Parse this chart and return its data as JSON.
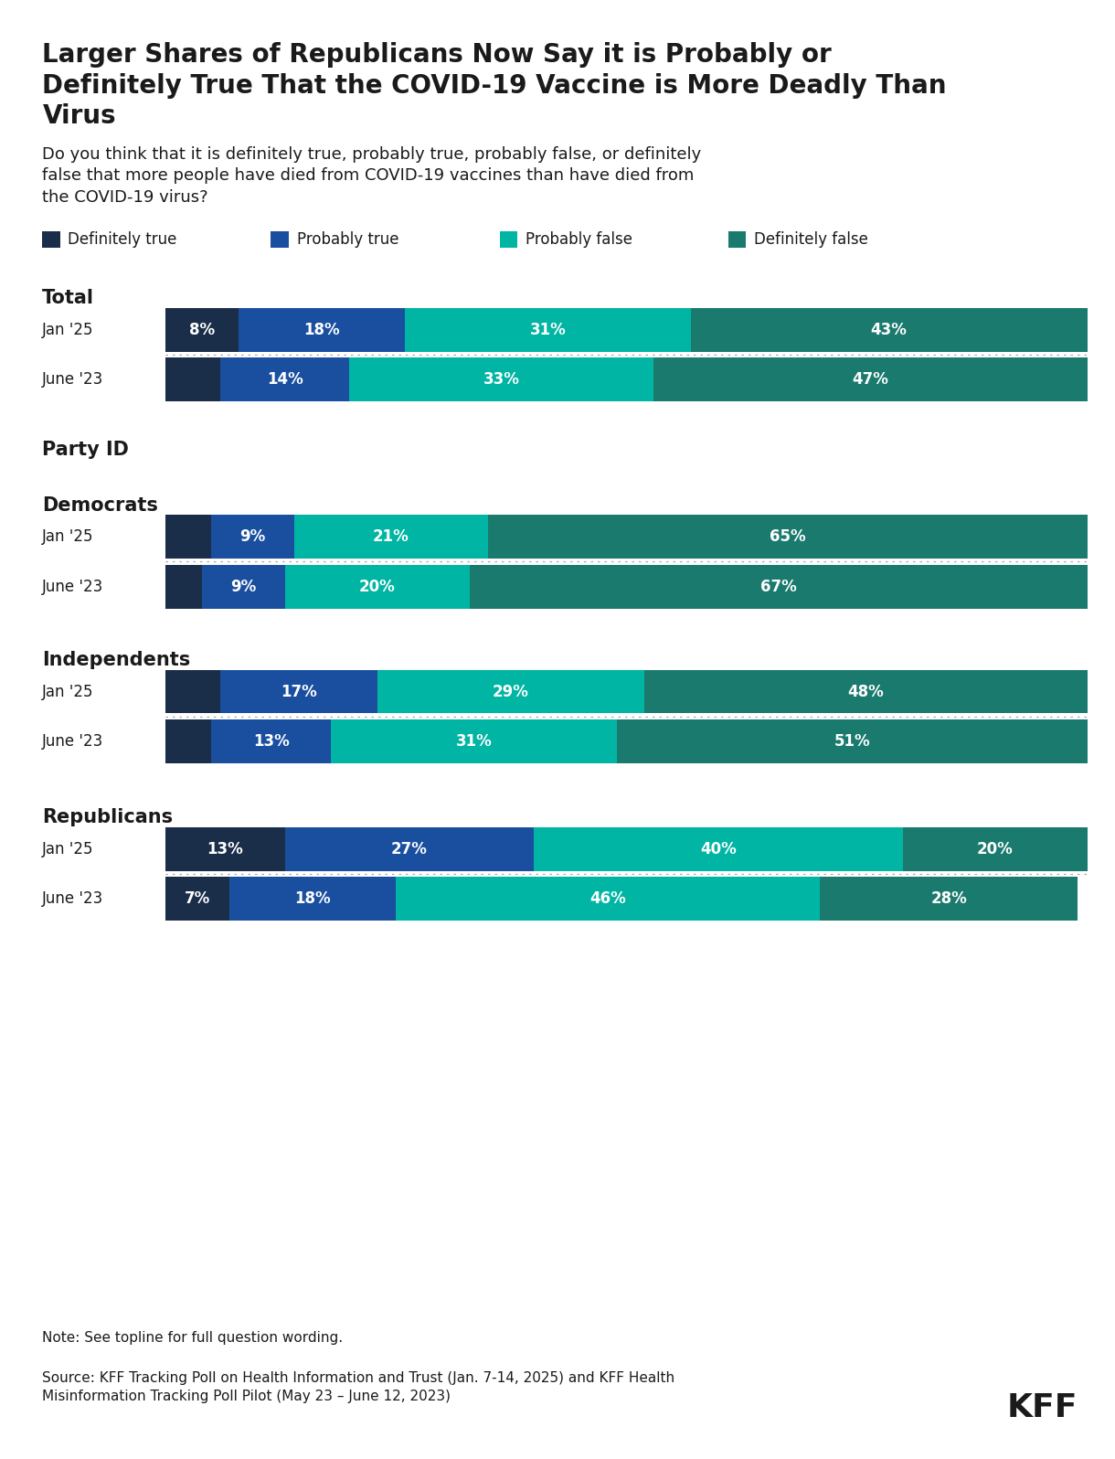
{
  "title": "Larger Shares of Republicans Now Say it is Probably or\nDefinitely True That the COVID-19 Vaccine is More Deadly Than\nVirus",
  "subtitle": "Do you think that it is definitely true, probably true, probably false, or definitely\nfalse that more people have died from COVID-19 vaccines than have died from\nthe COVID-19 virus?",
  "colors": {
    "definitely_true": "#1a2e4a",
    "probably_true": "#1a4fa0",
    "probably_false": "#00b5a3",
    "definitely_false": "#1a7a6e"
  },
  "legend_labels": [
    "Definitely true",
    "Probably true",
    "Probably false",
    "Definitely false"
  ],
  "groups": [
    {
      "name": "Total",
      "rows": [
        {
          "label": "Jan '25",
          "values": [
            8,
            18,
            31,
            43
          ]
        },
        {
          "label": "June '23",
          "values": [
            6,
            14,
            33,
            47
          ]
        }
      ]
    },
    {
      "name": "Party ID",
      "rows": []
    },
    {
      "name": "Democrats",
      "rows": [
        {
          "label": "Jan '25",
          "values": [
            5,
            9,
            21,
            65
          ]
        },
        {
          "label": "June '23",
          "values": [
            4,
            9,
            20,
            67
          ]
        }
      ]
    },
    {
      "name": "Independents",
      "rows": [
        {
          "label": "Jan '25",
          "values": [
            6,
            17,
            29,
            48
          ]
        },
        {
          "label": "June '23",
          "values": [
            5,
            13,
            31,
            51
          ]
        }
      ]
    },
    {
      "name": "Republicans",
      "rows": [
        {
          "label": "Jan '25",
          "values": [
            13,
            27,
            40,
            20
          ]
        },
        {
          "label": "June '23",
          "values": [
            7,
            18,
            46,
            28
          ]
        }
      ]
    }
  ],
  "note": "Note: See topline for full question wording.",
  "source": "Source: KFF Tracking Poll on Health Information and Trust (Jan. 7-14, 2025) and KFF Health\nMisinformation Tracking Poll Pilot (May 23 – June 12, 2023)",
  "background_color": "#ffffff",
  "text_color": "#222222",
  "min_label_pct": 7,
  "title_fontsize": 20,
  "subtitle_fontsize": 13,
  "legend_fontsize": 12,
  "section_fontsize": 15,
  "row_label_fontsize": 12,
  "bar_label_fontsize": 12,
  "note_fontsize": 11,
  "kff_fontsize": 26
}
